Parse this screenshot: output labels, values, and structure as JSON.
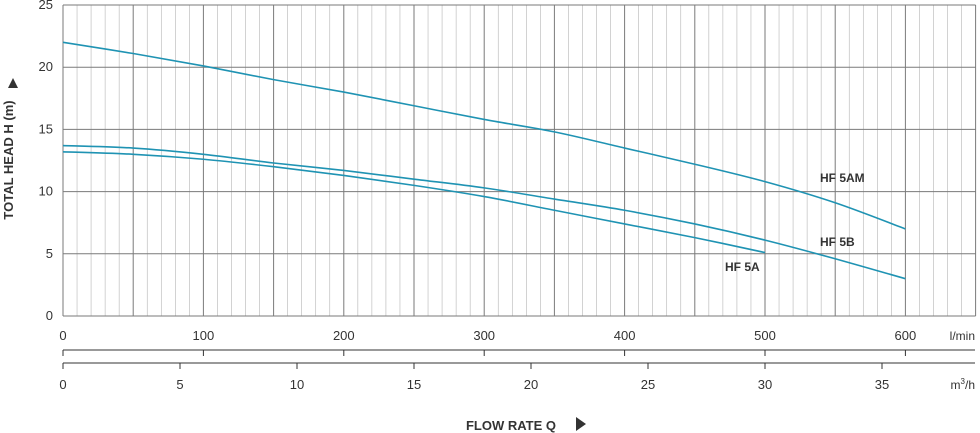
{
  "chart_data": {
    "type": "line",
    "ylabel": "TOTAL HEAD H (m)",
    "xlabel": "FLOW RATE Q",
    "ylim": [
      0,
      25
    ],
    "xlim": [
      0,
      650
    ],
    "grid": true,
    "y_ticks": [
      "0",
      "5",
      "10",
      "15",
      "20",
      "25"
    ],
    "x_primary": {
      "unit": "l/min",
      "ticks": [
        0,
        100,
        200,
        300,
        400,
        500,
        600
      ]
    },
    "x_secondary": {
      "unit_base": "m",
      "unit_sup": "3",
      "unit_tail": "/h",
      "ticks": [
        0,
        5,
        10,
        15,
        20,
        25,
        30,
        35
      ]
    },
    "series": [
      {
        "name": "HF 5AM",
        "x": [
          0,
          50,
          100,
          150,
          200,
          250,
          300,
          350,
          400,
          450,
          500,
          550,
          600
        ],
        "y": [
          22.0,
          21.1,
          20.1,
          19.0,
          18.0,
          16.9,
          15.8,
          14.8,
          13.5,
          12.2,
          10.8,
          9.1,
          7.0
        ]
      },
      {
        "name": "HF 5B",
        "x": [
          0,
          50,
          100,
          150,
          200,
          250,
          300,
          350,
          400,
          450,
          500,
          550,
          600
        ],
        "y": [
          13.7,
          13.5,
          13.0,
          12.3,
          11.7,
          11.0,
          10.3,
          9.4,
          8.5,
          7.4,
          6.1,
          4.6,
          3.0
        ]
      },
      {
        "name": "HF 5A",
        "x": [
          0,
          50,
          100,
          150,
          200,
          250,
          300,
          350,
          400,
          450,
          500
        ],
        "y": [
          13.2,
          13.0,
          12.6,
          12.0,
          11.3,
          10.5,
          9.6,
          8.5,
          7.4,
          6.3,
          5.1
        ]
      }
    ],
    "colors": {
      "line": "#1f93b3",
      "grid": "#7a7a7a",
      "text": "#333333"
    },
    "arrows": {
      "y_axis": "up",
      "x_axis": "right"
    }
  }
}
